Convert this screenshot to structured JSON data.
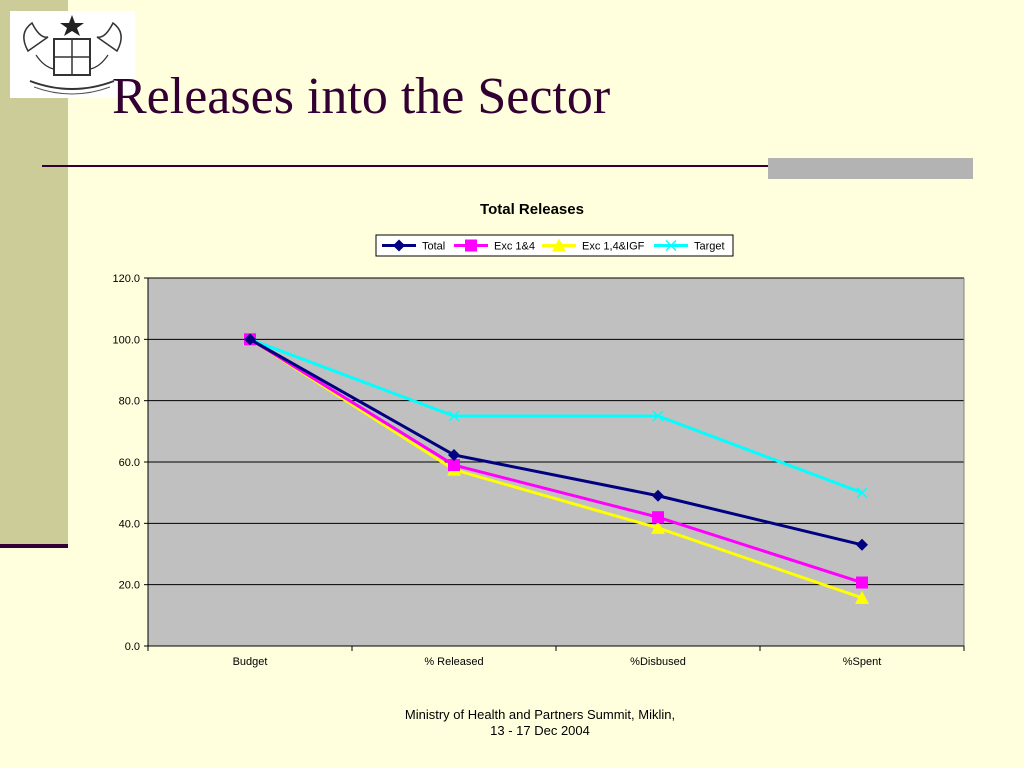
{
  "slide": {
    "title": "Releases into the Sector",
    "footer_line1": "Ministry of Health and Partners Summit, Miklin,",
    "footer_line2": "13 - 17 Dec 2004"
  },
  "colors": {
    "background": "#ffffdd",
    "accent_band": "#cccc99",
    "title": "#330033",
    "plot_area": "#c0c0c0"
  },
  "chart_data": {
    "type": "line",
    "title": "Total Releases",
    "xlabel": "",
    "ylabel": "",
    "categories": [
      "Budget",
      "% Released",
      "%Disbused",
      "%Spent"
    ],
    "ylim": [
      0,
      120
    ],
    "yticks": [
      "0.0",
      "20.0",
      "40.0",
      "60.0",
      "80.0",
      "100.0",
      "120.0"
    ],
    "grid": true,
    "legend_position": "top",
    "series": [
      {
        "name": "Total",
        "values": [
          100,
          62.3,
          49,
          33
        ],
        "color": "#000080",
        "marker": "diamond"
      },
      {
        "name": "Exc 1&4",
        "values": [
          100,
          59,
          42,
          20.7
        ],
        "color": "#ff00ff",
        "marker": "square"
      },
      {
        "name": "Exc 1,4&IGF",
        "values": [
          100,
          57.5,
          38.5,
          15.7
        ],
        "color": "#ffff00",
        "marker": "triangle"
      },
      {
        "name": "Target",
        "values": [
          100,
          75,
          75,
          50
        ],
        "color": "#00ffff",
        "marker": "x"
      }
    ]
  }
}
